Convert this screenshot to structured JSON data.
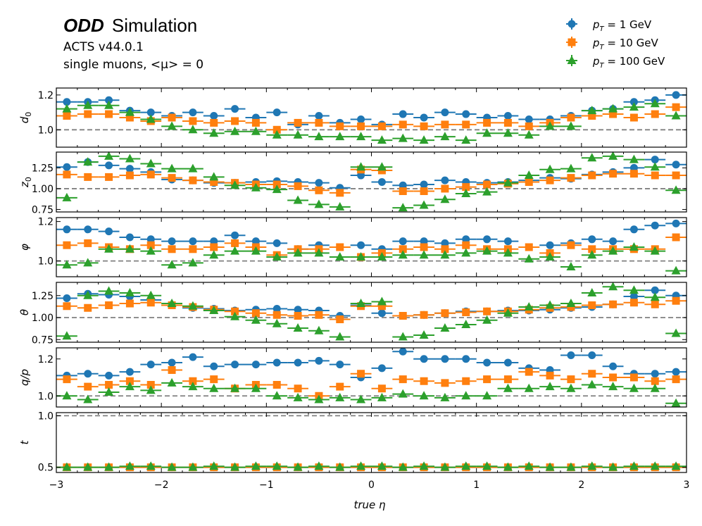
{
  "header": {
    "experiment": "ODD",
    "label": "Simulation",
    "version": "ACTS v44.0.1",
    "sample": "single muons, <μ> = 0"
  },
  "colors": {
    "series": [
      "#1f77b4",
      "#ff7f0e",
      "#2ca02c"
    ],
    "reference_line": "#808080",
    "axes": "#000000"
  },
  "legend": {
    "placement": "top-right",
    "entries": [
      {
        "prefix": "p",
        "subscript": "T",
        "value": " = 1 GeV",
        "marker": "circle"
      },
      {
        "prefix": "p",
        "subscript": "T",
        "value": " = 10 GeV",
        "marker": "square"
      },
      {
        "prefix": "p",
        "subscript": "T",
        "value": " = 100 GeV",
        "marker": "triangle"
      }
    ]
  },
  "chart_data": {
    "type": "scatter",
    "xlabel": "true η",
    "xlim": [
      -3,
      3
    ],
    "xticks": [
      -3,
      -2,
      -1,
      0,
      1,
      2,
      3
    ],
    "xtick_labels": [
      "−3",
      "−2",
      "−1",
      "0",
      "1",
      "2",
      "3"
    ],
    "bin_width": 0.2,
    "x": [
      -2.9,
      -2.7,
      -2.5,
      -2.3,
      -2.1,
      -1.9,
      -1.7,
      -1.5,
      -1.3,
      -1.1,
      -0.9,
      -0.7,
      -0.5,
      -0.3,
      -0.1,
      0.1,
      0.3,
      0.5,
      0.7,
      0.9,
      1.1,
      1.3,
      1.5,
      1.7,
      1.9,
      2.1,
      2.3,
      2.5,
      2.7,
      2.9
    ],
    "series_names": [
      "pT = 1 GeV",
      "pT = 10 GeV",
      "pT = 100 GeV"
    ],
    "reference_line": 1.0,
    "panels": [
      {
        "ylabel": "d",
        "ylabel_sub": "0",
        "ylim": [
          0.9,
          1.24
        ],
        "yticks": [
          1.0,
          1.2
        ],
        "ytick_labels": [
          "1.0",
          "1.2"
        ],
        "series": [
          {
            "name": "pT = 1 GeV",
            "values": [
              1.16,
              1.16,
              1.17,
              1.11,
              1.1,
              1.08,
              1.1,
              1.08,
              1.12,
              1.07,
              1.1,
              1.03,
              1.08,
              1.04,
              1.06,
              1.03,
              1.09,
              1.07,
              1.1,
              1.09,
              1.07,
              1.08,
              1.06,
              1.06,
              1.08,
              1.11,
              1.12,
              1.16,
              1.17,
              1.2
            ]
          },
          {
            "name": "pT = 10 GeV",
            "values": [
              1.08,
              1.09,
              1.09,
              1.07,
              1.05,
              1.07,
              1.05,
              1.04,
              1.05,
              1.04,
              1.0,
              1.04,
              1.04,
              1.02,
              1.02,
              1.02,
              1.03,
              1.02,
              1.03,
              1.03,
              1.04,
              1.04,
              1.02,
              1.04,
              1.07,
              1.08,
              1.09,
              1.07,
              1.09,
              1.13
            ]
          },
          {
            "name": "pT = 100 GeV",
            "values": [
              1.12,
              1.14,
              1.14,
              1.1,
              1.06,
              1.02,
              1.0,
              0.98,
              0.99,
              0.99,
              0.97,
              0.97,
              0.96,
              0.96,
              0.96,
              0.94,
              0.95,
              0.94,
              0.96,
              0.94,
              0.98,
              0.98,
              0.97,
              1.02,
              1.02,
              1.11,
              1.12,
              1.13,
              1.15,
              1.08
            ]
          }
        ]
      },
      {
        "ylabel": "z",
        "ylabel_sub": "0",
        "ylim": [
          0.72,
          1.44
        ],
        "yticks": [
          0.75,
          1.0,
          1.25
        ],
        "ytick_labels": [
          "0.75",
          "1.00",
          "1.25"
        ],
        "series": [
          {
            "name": "pT = 1 GeV",
            "values": [
              1.26,
              1.32,
              1.28,
              1.24,
              1.2,
              1.11,
              1.1,
              1.07,
              1.07,
              1.08,
              1.09,
              1.08,
              1.07,
              1.01,
              1.16,
              1.08,
              1.04,
              1.05,
              1.1,
              1.08,
              1.07,
              1.08,
              1.1,
              1.13,
              1.12,
              1.17,
              1.2,
              1.25,
              1.35,
              1.29
            ]
          },
          {
            "name": "pT = 10 GeV",
            "values": [
              1.17,
              1.14,
              1.14,
              1.16,
              1.17,
              1.13,
              1.1,
              1.08,
              1.07,
              1.05,
              1.05,
              1.03,
              0.98,
              0.95,
              1.23,
              1.22,
              0.97,
              0.97,
              1.0,
              1.02,
              1.05,
              1.06,
              1.08,
              1.1,
              1.13,
              1.16,
              1.18,
              1.18,
              1.16,
              1.16
            ]
          },
          {
            "name": "pT = 100 GeV",
            "values": [
              0.89,
              1.32,
              1.39,
              1.36,
              1.3,
              1.24,
              1.24,
              1.14,
              1.04,
              1.01,
              0.99,
              0.86,
              0.81,
              0.78,
              1.26,
              1.26,
              0.77,
              0.8,
              0.87,
              0.94,
              0.96,
              1.07,
              1.16,
              1.23,
              1.24,
              1.37,
              1.39,
              1.35,
              1.26,
              0.98
            ]
          }
        ]
      },
      {
        "ylabel": "φ",
        "ylabel_sub": "",
        "ylim": [
          0.92,
          1.22
        ],
        "yticks": [
          1.0,
          1.2
        ],
        "ytick_labels": [
          "1.0",
          "1.2"
        ],
        "series": [
          {
            "name": "pT = 1 GeV",
            "values": [
              1.16,
              1.16,
              1.15,
              1.12,
              1.11,
              1.1,
              1.1,
              1.1,
              1.13,
              1.1,
              1.09,
              1.06,
              1.08,
              1.07,
              1.08,
              1.06,
              1.1,
              1.1,
              1.09,
              1.11,
              1.11,
              1.1,
              1.07,
              1.08,
              1.09,
              1.11,
              1.1,
              1.16,
              1.18,
              1.19
            ]
          },
          {
            "name": "pT = 10 GeV",
            "values": [
              1.08,
              1.09,
              1.07,
              1.06,
              1.08,
              1.06,
              1.06,
              1.07,
              1.09,
              1.07,
              1.03,
              1.06,
              1.06,
              1.07,
              1.02,
              1.04,
              1.06,
              1.07,
              1.06,
              1.08,
              1.06,
              1.06,
              1.07,
              1.04,
              1.08,
              1.06,
              1.06,
              1.06,
              1.06,
              1.12
            ]
          },
          {
            "name": "pT = 100 GeV",
            "values": [
              0.98,
              0.99,
              1.06,
              1.06,
              1.05,
              0.98,
              0.99,
              1.03,
              1.05,
              1.05,
              1.02,
              1.04,
              1.04,
              1.02,
              1.02,
              1.02,
              1.03,
              1.03,
              1.03,
              1.04,
              1.05,
              1.04,
              1.01,
              1.02,
              0.97,
              1.03,
              1.05,
              1.07,
              1.05,
              0.95
            ]
          }
        ]
      },
      {
        "ylabel": "θ",
        "ylabel_sub": "",
        "ylim": [
          0.72,
          1.4
        ],
        "yticks": [
          0.75,
          1.0,
          1.25
        ],
        "ytick_labels": [
          "0.75",
          "1.00",
          "1.25"
        ],
        "series": [
          {
            "name": "pT = 1 GeV",
            "values": [
              1.22,
              1.27,
              1.26,
              1.24,
              1.2,
              1.14,
              1.11,
              1.1,
              1.08,
              1.09,
              1.1,
              1.09,
              1.08,
              1.02,
              1.14,
              1.05,
              1.02,
              1.03,
              1.05,
              1.07,
              1.07,
              1.08,
              1.08,
              1.09,
              1.11,
              1.12,
              1.15,
              1.24,
              1.31,
              1.25
            ]
          },
          {
            "name": "pT = 10 GeV",
            "values": [
              1.13,
              1.11,
              1.14,
              1.16,
              1.17,
              1.14,
              1.12,
              1.09,
              1.07,
              1.05,
              1.03,
              1.02,
              1.03,
              0.98,
              1.13,
              1.13,
              1.02,
              1.03,
              1.05,
              1.06,
              1.07,
              1.07,
              1.09,
              1.11,
              1.12,
              1.14,
              1.15,
              1.17,
              1.15,
              1.19
            ]
          },
          {
            "name": "pT = 100 GeV",
            "values": [
              0.79,
              1.25,
              1.3,
              1.28,
              1.25,
              1.16,
              1.13,
              1.08,
              1.01,
              0.97,
              0.93,
              0.88,
              0.85,
              0.78,
              1.16,
              1.18,
              0.78,
              0.8,
              0.88,
              0.92,
              0.97,
              1.05,
              1.12,
              1.14,
              1.16,
              1.28,
              1.35,
              1.31,
              1.23,
              0.82
            ]
          }
        ]
      },
      {
        "ylabel": "q/p",
        "ylabel_sub": "",
        "ylim": [
          0.94,
          1.26
        ],
        "yticks": [
          1.0,
          1.2
        ],
        "ytick_labels": [
          "1.0",
          "1.2"
        ],
        "series": [
          {
            "name": "pT = 1 GeV",
            "values": [
              1.11,
              1.12,
              1.11,
              1.13,
              1.17,
              1.18,
              1.21,
              1.16,
              1.17,
              1.17,
              1.18,
              1.18,
              1.19,
              1.17,
              1.1,
              1.15,
              1.24,
              1.2,
              1.2,
              1.2,
              1.18,
              1.18,
              1.15,
              1.14,
              1.22,
              1.22,
              1.16,
              1.12,
              1.12,
              1.13
            ]
          },
          {
            "name": "pT = 10 GeV",
            "values": [
              1.09,
              1.05,
              1.06,
              1.08,
              1.06,
              1.14,
              1.08,
              1.09,
              1.04,
              1.06,
              1.06,
              1.04,
              1.0,
              1.05,
              1.12,
              1.04,
              1.09,
              1.08,
              1.07,
              1.08,
              1.09,
              1.09,
              1.13,
              1.11,
              1.09,
              1.12,
              1.1,
              1.1,
              1.08,
              1.09
            ]
          },
          {
            "name": "pT = 100 GeV",
            "values": [
              1.0,
              0.98,
              1.02,
              1.05,
              1.03,
              1.07,
              1.05,
              1.04,
              1.04,
              1.04,
              1.0,
              0.99,
              0.98,
              0.99,
              0.98,
              0.99,
              1.01,
              1.0,
              0.99,
              1.0,
              1.0,
              1.04,
              1.04,
              1.05,
              1.04,
              1.06,
              1.05,
              1.04,
              1.04,
              0.96
            ]
          }
        ]
      },
      {
        "ylabel": "t",
        "ylabel_sub": "",
        "ylim": [
          0.45,
          1.03
        ],
        "yticks": [
          0.5,
          1.0
        ],
        "ytick_labels": [
          "0.5",
          "1.0"
        ],
        "series": [
          {
            "name": "pT = 1 GeV",
            "values": [
              0.5,
              0.5,
              0.5,
              0.5,
              0.5,
              0.5,
              0.5,
              0.5,
              0.5,
              0.5,
              0.5,
              0.5,
              0.5,
              0.5,
              0.5,
              0.5,
              0.5,
              0.5,
              0.5,
              0.5,
              0.5,
              0.5,
              0.5,
              0.5,
              0.5,
              0.5,
              0.5,
              0.5,
              0.5,
              0.5
            ]
          },
          {
            "name": "pT = 10 GeV",
            "values": [
              0.5,
              0.5,
              0.5,
              0.5,
              0.5,
              0.5,
              0.5,
              0.5,
              0.5,
              0.5,
              0.5,
              0.5,
              0.5,
              0.5,
              0.5,
              0.5,
              0.5,
              0.5,
              0.5,
              0.5,
              0.5,
              0.5,
              0.5,
              0.5,
              0.5,
              0.5,
              0.5,
              0.5,
              0.5,
              0.5
            ]
          },
          {
            "name": "pT = 100 GeV",
            "values": [
              0.5,
              0.5,
              0.5,
              0.51,
              0.51,
              0.5,
              0.5,
              0.51,
              0.5,
              0.51,
              0.51,
              0.5,
              0.51,
              0.5,
              0.51,
              0.51,
              0.5,
              0.51,
              0.5,
              0.51,
              0.51,
              0.5,
              0.51,
              0.5,
              0.5,
              0.51,
              0.5,
              0.51,
              0.51,
              0.51
            ]
          }
        ]
      }
    ]
  }
}
